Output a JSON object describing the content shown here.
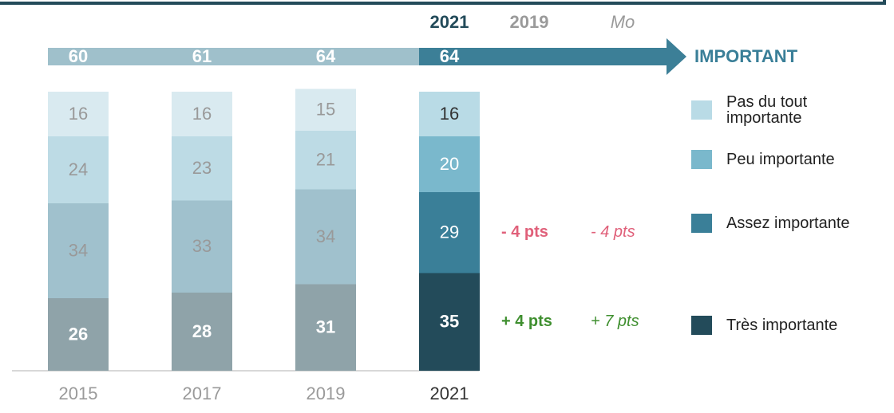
{
  "chart_data": {
    "type": "stacked_bar",
    "categories": [
      "2015",
      "2017",
      "2019",
      "2021"
    ],
    "category_colors": [
      "#9a9a9a",
      "#9a9a9a",
      "#9a9a9a",
      "#333333"
    ],
    "series": [
      {
        "name": "Pas du tout importante",
        "color": "#b9dbe6",
        "colors": [
          "#d9eaf0",
          "#d9eaf0",
          "#d9eaf0",
          "#b9dbe6"
        ],
        "values": [
          16,
          16,
          15,
          16
        ]
      },
      {
        "name": "Peu importante",
        "color": "#7ab8cc",
        "colors": [
          "#bddbe5",
          "#bddbe5",
          "#bddbe5",
          "#7ab8cc"
        ],
        "values": [
          24,
          23,
          21,
          20
        ]
      },
      {
        "name": "Assez importante",
        "color": "#3a7f98",
        "colors": [
          "#a0c1cd",
          "#a0c1cd",
          "#a0c1cd",
          "#3a7f98"
        ],
        "values": [
          34,
          33,
          34,
          29
        ]
      },
      {
        "name": "Très importante",
        "color": "#234b5a",
        "colors": [
          "#8fa3a9",
          "#8fa3a9",
          "#8fa3a9",
          "#234b5a"
        ],
        "values": [
          26,
          28,
          31,
          35
        ]
      }
    ],
    "ylim": [
      0,
      100
    ],
    "totals": {
      "name": "IMPORTANT",
      "values": [
        60,
        61,
        64,
        64
      ],
      "colors": [
        "#9fc0cb",
        "#3c7f97"
      ]
    },
    "comparison_headers": [
      "2021",
      "2019",
      "Mo"
    ],
    "changes": [
      {
        "vs_2019": "- 4 pts",
        "vs_mo": "- 4 pts",
        "color": "#e0607a"
      },
      {
        "vs_2019": "+ 4 pts",
        "vs_mo": "+ 7 pts",
        "color": "#3f8f2f"
      }
    ]
  }
}
